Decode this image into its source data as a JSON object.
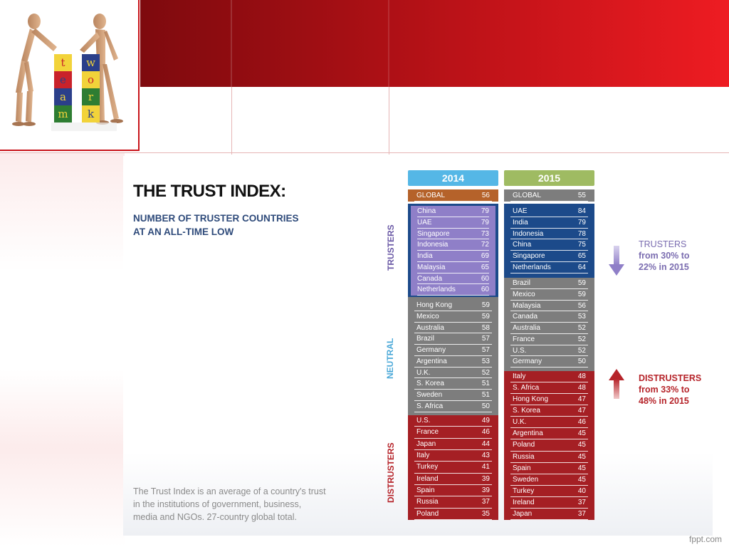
{
  "title": "THE TRUST INDEX:",
  "subtitle_line1": "NUMBER OF TRUSTER COUNTRIES",
  "subtitle_line2": "AT AN ALL-TIME LOW",
  "footnote_line1": "The Trust Index is an average of a country's trust",
  "footnote_line2": "in the institutions of government, business,",
  "footnote_line3": "media and NGOs. 27-country global total.",
  "footer_brand": "fppt.com",
  "logo_letters": {
    "col1": [
      "t",
      "e",
      "a",
      "m"
    ],
    "col2": [
      "w",
      "o",
      "r",
      "k"
    ]
  },
  "side_labels": {
    "trusters": "TRUSTERS",
    "neutral": "NEUTRAL",
    "distrusters": "DISTRUSTERS"
  },
  "annotations": {
    "trusters": [
      "TRUSTERS",
      "from 30% to",
      "22% in 2015"
    ],
    "distrusters": [
      "DISTRUSTERS",
      "from 33% to",
      "48% in 2015"
    ]
  },
  "colors": {
    "purple": "#8f7fc8",
    "gray": "#7d7d7d",
    "red": "#a51f24",
    "blue": "#1c4a8a",
    "orange": "#b5622a",
    "header2014": "#55b7e6",
    "header2015": "#9fbb62"
  },
  "columns": [
    {
      "year": "2014",
      "global": {
        "name": "GLOBAL",
        "value": "56"
      },
      "trusters": [
        {
          "name": "China",
          "value": "79"
        },
        {
          "name": "UAE",
          "value": "79"
        },
        {
          "name": "Singapore",
          "value": "73"
        },
        {
          "name": "Indonesia",
          "value": "72"
        },
        {
          "name": "India",
          "value": "69"
        },
        {
          "name": "Malaysia",
          "value": "65"
        },
        {
          "name": "Canada",
          "value": "60"
        },
        {
          "name": "Netherlands",
          "value": "60"
        }
      ],
      "neutral": [
        {
          "name": "Hong Kong",
          "value": "59"
        },
        {
          "name": "Mexico",
          "value": "59"
        },
        {
          "name": "Australia",
          "value": "58"
        },
        {
          "name": "Brazil",
          "value": "57"
        },
        {
          "name": "Germany",
          "value": "57"
        },
        {
          "name": "Argentina",
          "value": "53"
        },
        {
          "name": "U.K.",
          "value": "52"
        },
        {
          "name": "S. Korea",
          "value": "51"
        },
        {
          "name": "Sweden",
          "value": "51"
        },
        {
          "name": "S. Africa",
          "value": "50"
        }
      ],
      "distrusters": [
        {
          "name": "U.S.",
          "value": "49"
        },
        {
          "name": "France",
          "value": "46"
        },
        {
          "name": "Japan",
          "value": "44"
        },
        {
          "name": "Italy",
          "value": "43"
        },
        {
          "name": "Turkey",
          "value": "41"
        },
        {
          "name": "Ireland",
          "value": "39"
        },
        {
          "name": "Spain",
          "value": "39"
        },
        {
          "name": "Russia",
          "value": "37"
        },
        {
          "name": "Poland",
          "value": "35"
        }
      ]
    },
    {
      "year": "2015",
      "global": {
        "name": "GLOBAL",
        "value": "55"
      },
      "trusters": [
        {
          "name": "UAE",
          "value": "84"
        },
        {
          "name": "India",
          "value": "79"
        },
        {
          "name": "Indonesia",
          "value": "78"
        },
        {
          "name": "China",
          "value": "75"
        },
        {
          "name": "Singapore",
          "value": "65"
        },
        {
          "name": "Netherlands",
          "value": "64"
        }
      ],
      "neutral": [
        {
          "name": "Brazil",
          "value": "59"
        },
        {
          "name": "Mexico",
          "value": "59"
        },
        {
          "name": "Malaysia",
          "value": "56"
        },
        {
          "name": "Canada",
          "value": "53"
        },
        {
          "name": "Australia",
          "value": "52"
        },
        {
          "name": "France",
          "value": "52"
        },
        {
          "name": "U.S.",
          "value": "52"
        },
        {
          "name": "Germany",
          "value": "50"
        }
      ],
      "distrusters": [
        {
          "name": "Italy",
          "value": "48"
        },
        {
          "name": "S. Africa",
          "value": "48"
        },
        {
          "name": "Hong Kong",
          "value": "47"
        },
        {
          "name": "S. Korea",
          "value": "47"
        },
        {
          "name": "U.K.",
          "value": "46"
        },
        {
          "name": "Argentina",
          "value": "45"
        },
        {
          "name": "Poland",
          "value": "45"
        },
        {
          "name": "Russia",
          "value": "45"
        },
        {
          "name": "Spain",
          "value": "45"
        },
        {
          "name": "Sweden",
          "value": "45"
        },
        {
          "name": "Turkey",
          "value": "40"
        },
        {
          "name": "Ireland",
          "value": "37"
        },
        {
          "name": "Japan",
          "value": "37"
        }
      ]
    }
  ]
}
